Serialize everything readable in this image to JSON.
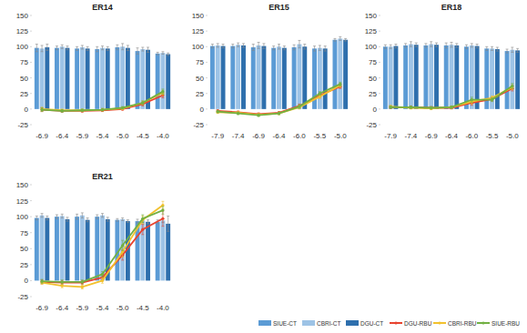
{
  "chart_data": [
    {
      "type": "bar",
      "title": "ER14",
      "categories": [
        "-6.9",
        "-6.4",
        "-5.9",
        "-5.4",
        "-5.0",
        "-4.5",
        "-4.0"
      ],
      "ylim": [
        -25,
        150
      ],
      "yticks": [
        -25,
        0,
        25,
        50,
        75,
        100,
        125,
        150
      ],
      "grid": false,
      "series": [
        {
          "name": "SIUE-CT",
          "type": "bar",
          "color": "#5b9bd5",
          "values": [
            98,
            98,
            97,
            96,
            99,
            93,
            89
          ],
          "errors": [
            6,
            3,
            3,
            4,
            4,
            5,
            2
          ]
        },
        {
          "name": "CBRI-CT",
          "type": "bar",
          "color": "#9dc3e6",
          "values": [
            97,
            100,
            99,
            98,
            100,
            96,
            90
          ],
          "errors": [
            5,
            3,
            3,
            3,
            5,
            3,
            2
          ]
        },
        {
          "name": "DGU-CT",
          "type": "bar",
          "color": "#2e6fad",
          "values": [
            99,
            98,
            97,
            97,
            98,
            95,
            88
          ],
          "errors": [
            5,
            3,
            3,
            3,
            4,
            4,
            2
          ]
        },
        {
          "name": "DGU-RBU",
          "type": "line",
          "color": "#e8432f",
          "marker": "circle",
          "values": [
            -1,
            -3,
            -3,
            -2,
            0,
            8,
            22
          ],
          "errors": [
            3,
            2,
            2,
            2,
            2,
            3,
            4
          ]
        },
        {
          "name": "CBRI-RBU",
          "type": "line",
          "color": "#f2c12e",
          "marker": "circle",
          "values": [
            0,
            -2,
            -2,
            -1,
            1,
            10,
            26
          ],
          "errors": [
            3,
            2,
            2,
            2,
            2,
            3,
            4
          ]
        },
        {
          "name": "SIUE-RBU",
          "type": "line",
          "color": "#72b043",
          "marker": "circle",
          "values": [
            -1,
            -3,
            -2,
            -1,
            2,
            10,
            28
          ],
          "errors": [
            3,
            2,
            2,
            2,
            2,
            3,
            4
          ]
        }
      ]
    },
    {
      "type": "bar",
      "title": "ER15",
      "categories": [
        "-7.9",
        "-7.4",
        "-6.9",
        "-6.4",
        "-6.0",
        "-5.5",
        "-5.0"
      ],
      "ylim": [
        -25,
        150
      ],
      "yticks": [
        -25,
        0,
        25,
        50,
        75,
        100,
        125,
        150
      ],
      "grid": false,
      "series": [
        {
          "name": "SIUE-CT",
          "type": "bar",
          "color": "#5b9bd5",
          "values": [
            101,
            101,
            99,
            98,
            99,
            97,
            111
          ],
          "errors": [
            3,
            3,
            5,
            3,
            4,
            4,
            2
          ]
        },
        {
          "name": "CBRI-CT",
          "type": "bar",
          "color": "#9dc3e6",
          "values": [
            102,
            103,
            102,
            100,
            104,
            98,
            113
          ],
          "errors": [
            3,
            3,
            5,
            4,
            6,
            4,
            3
          ]
        },
        {
          "name": "DGU-CT",
          "type": "bar",
          "color": "#2e6fad",
          "values": [
            101,
            102,
            101,
            98,
            100,
            97,
            111
          ],
          "errors": [
            3,
            3,
            4,
            3,
            4,
            4,
            2
          ]
        },
        {
          "name": "DGU-RBU",
          "type": "line",
          "color": "#e8432f",
          "marker": "circle",
          "values": [
            -3,
            -5,
            -8,
            -6,
            5,
            22,
            36
          ],
          "errors": [
            2,
            2,
            2,
            2,
            3,
            3,
            3
          ]
        },
        {
          "name": "CBRI-RBU",
          "type": "line",
          "color": "#f2c12e",
          "marker": "circle",
          "values": [
            -5,
            -6,
            -9,
            -7,
            3,
            20,
            38
          ],
          "errors": [
            2,
            2,
            2,
            2,
            3,
            3,
            3
          ]
        },
        {
          "name": "SIUE-RBU",
          "type": "line",
          "color": "#72b043",
          "marker": "circle",
          "values": [
            -4,
            -7,
            -10,
            -7,
            4,
            25,
            40
          ],
          "errors": [
            2,
            2,
            2,
            2,
            3,
            3,
            3
          ]
        }
      ]
    },
    {
      "type": "bar",
      "title": "ER18",
      "categories": [
        "-7.9",
        "-7.4",
        "-6.9",
        "-6.4",
        "-6.0",
        "-5.5",
        "-5.0"
      ],
      "ylim": [
        -25,
        150
      ],
      "yticks": [
        -25,
        0,
        25,
        50,
        75,
        100,
        125,
        150
      ],
      "grid": false,
      "series": [
        {
          "name": "SIUE-CT",
          "type": "bar",
          "color": "#5b9bd5",
          "values": [
            100,
            102,
            102,
            102,
            100,
            97,
            93
          ],
          "errors": [
            3,
            3,
            3,
            4,
            3,
            3,
            3
          ]
        },
        {
          "name": "CBRI-CT",
          "type": "bar",
          "color": "#9dc3e6",
          "values": [
            100,
            104,
            104,
            103,
            102,
            97,
            95
          ],
          "errors": [
            3,
            4,
            4,
            4,
            3,
            3,
            4
          ]
        },
        {
          "name": "DGU-CT",
          "type": "bar",
          "color": "#2e6fad",
          "values": [
            101,
            103,
            103,
            102,
            101,
            96,
            94
          ],
          "errors": [
            3,
            3,
            3,
            3,
            3,
            3,
            3
          ]
        },
        {
          "name": "DGU-RBU",
          "type": "line",
          "color": "#e8432f",
          "marker": "circle",
          "values": [
            3,
            3,
            2,
            2,
            10,
            16,
            33
          ],
          "errors": [
            2,
            2,
            2,
            2,
            4,
            3,
            4
          ]
        },
        {
          "name": "CBRI-RBU",
          "type": "line",
          "color": "#f2c12e",
          "marker": "circle",
          "values": [
            4,
            2,
            1,
            3,
            12,
            18,
            35
          ],
          "errors": [
            2,
            2,
            2,
            2,
            4,
            3,
            4
          ]
        },
        {
          "name": "SIUE-RBU",
          "type": "line",
          "color": "#72b043",
          "marker": "circle",
          "values": [
            3,
            3,
            2,
            3,
            15,
            15,
            37
          ],
          "errors": [
            2,
            2,
            2,
            2,
            4,
            3,
            4
          ]
        }
      ]
    },
    {
      "type": "bar",
      "title": "ER21",
      "categories": [
        "-6.9",
        "-6.4",
        "-5.9",
        "-5.4",
        "-5.0",
        "-4.5",
        "-4.0"
      ],
      "ylim": [
        -25,
        150
      ],
      "yticks": [
        -25,
        0,
        25,
        50,
        75,
        100,
        125,
        150
      ],
      "grid": false,
      "legend": "bottom-right",
      "series": [
        {
          "name": "SIUE-CT",
          "type": "bar",
          "color": "#5b9bd5",
          "values": [
            98,
            100,
            100,
            100,
            95,
            93,
            92
          ],
          "errors": [
            3,
            3,
            4,
            3,
            2,
            3,
            3
          ]
        },
        {
          "name": "CBRI-CT",
          "type": "bar",
          "color": "#9dc3e6",
          "values": [
            102,
            101,
            102,
            102,
            96,
            94,
            94
          ],
          "errors": [
            3,
            3,
            4,
            3,
            2,
            3,
            3
          ]
        },
        {
          "name": "DGU-CT",
          "type": "bar",
          "color": "#2e6fad",
          "values": [
            98,
            96,
            95,
            96,
            93,
            92,
            89
          ],
          "errors": [
            3,
            3,
            3,
            3,
            2,
            3,
            12
          ]
        },
        {
          "name": "DGU-RBU",
          "type": "line",
          "color": "#e8432f",
          "marker": "circle",
          "values": [
            -2,
            -3,
            -3,
            5,
            40,
            80,
            97
          ],
          "errors": [
            3,
            3,
            3,
            4,
            8,
            8,
            12
          ]
        },
        {
          "name": "CBRI-RBU",
          "type": "line",
          "color": "#f2c12e",
          "marker": "circle",
          "values": [
            -3,
            -8,
            -10,
            0,
            45,
            95,
            118
          ],
          "errors": [
            3,
            3,
            3,
            4,
            8,
            6,
            6
          ]
        },
        {
          "name": "SIUE-RBU",
          "type": "line",
          "color": "#72b043",
          "marker": "circle",
          "values": [
            -1,
            -2,
            -2,
            10,
            55,
            97,
            110
          ],
          "errors": [
            3,
            3,
            3,
            4,
            8,
            6,
            6
          ]
        }
      ]
    }
  ]
}
